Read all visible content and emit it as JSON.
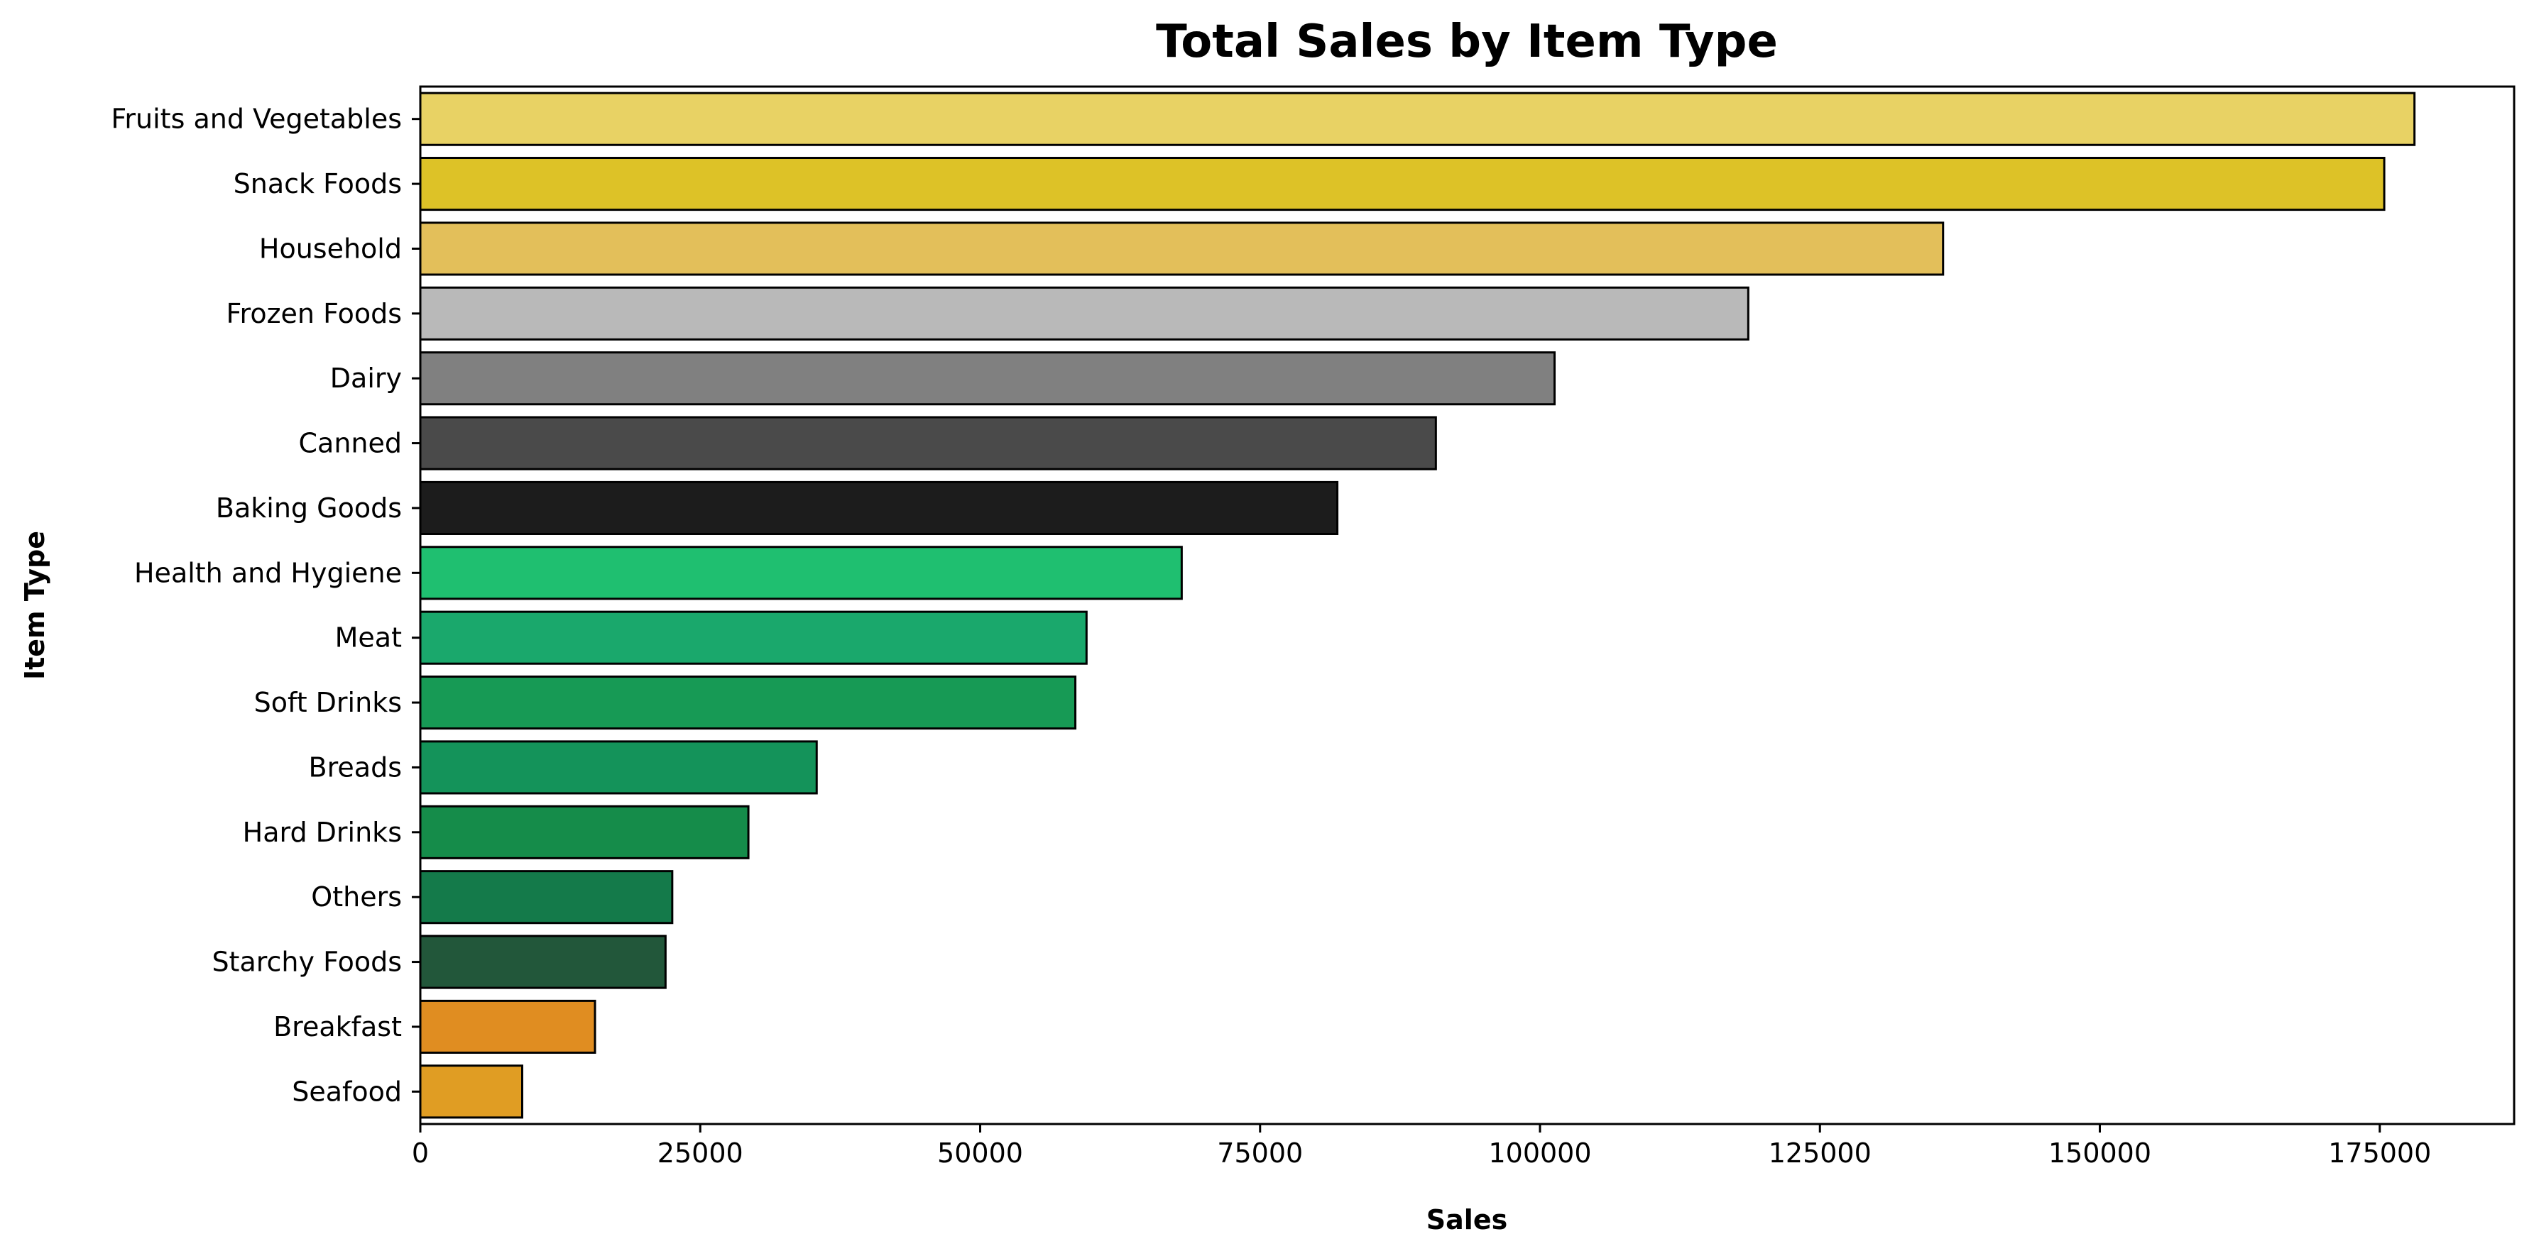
{
  "chart_data": {
    "type": "bar",
    "orientation": "horizontal",
    "title": "Total Sales by Item Type",
    "xlabel": "Sales",
    "ylabel": "Item Type",
    "xlim": [
      0,
      187000
    ],
    "xticks": [
      0,
      25000,
      50000,
      75000,
      100000,
      125000,
      150000,
      175000
    ],
    "grid": false,
    "categories": [
      "Fruits and Vegetables",
      "Snack Foods",
      "Household",
      "Frozen Foods",
      "Dairy",
      "Canned",
      "Baking Goods",
      "Health and Hygiene",
      "Meat",
      "Soft Drinks",
      "Breads",
      "Hard Drinks",
      "Others",
      "Starchy Foods",
      "Breakfast",
      "Seafood"
    ],
    "values": [
      178100,
      175400,
      136000,
      118600,
      101300,
      90700,
      81900,
      68000,
      59500,
      58500,
      35400,
      29300,
      22500,
      21900,
      15600,
      9100
    ],
    "colors": [
      "#e8d264",
      "#ddc227",
      "#e3bf5a",
      "#b9b9b9",
      "#808080",
      "#4a4a4a",
      "#1c1c1c",
      "#1fbf70",
      "#1aa86c",
      "#179a55",
      "#14935a",
      "#158c4a",
      "#147a4a",
      "#22573a",
      "#e08d21",
      "#e09d23"
    ]
  }
}
